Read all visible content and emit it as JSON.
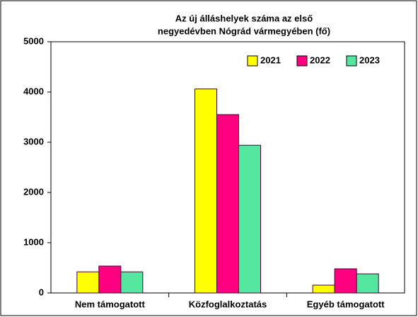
{
  "chart_data": {
    "type": "bar",
    "title": [
      "Az új álláshelyek száma az első",
      "negyedévben Nógrád vármegyében (fő)"
    ],
    "categories": [
      "Nem támogatott",
      "Közfoglalkoztatás",
      "Egyéb támogatott"
    ],
    "series": [
      {
        "name": "2021",
        "color": "#ffff00",
        "values": [
          420,
          4060,
          155
        ]
      },
      {
        "name": "2022",
        "color": "#ff0080",
        "values": [
          535,
          3550,
          480
        ]
      },
      {
        "name": "2023",
        "color": "#55e6a0",
        "values": [
          420,
          2940,
          380
        ]
      }
    ],
    "ylim": [
      0,
      5000
    ],
    "yticks": [
      0,
      1000,
      2000,
      3000,
      4000,
      5000
    ],
    "grid": false,
    "legend": "top-right"
  }
}
